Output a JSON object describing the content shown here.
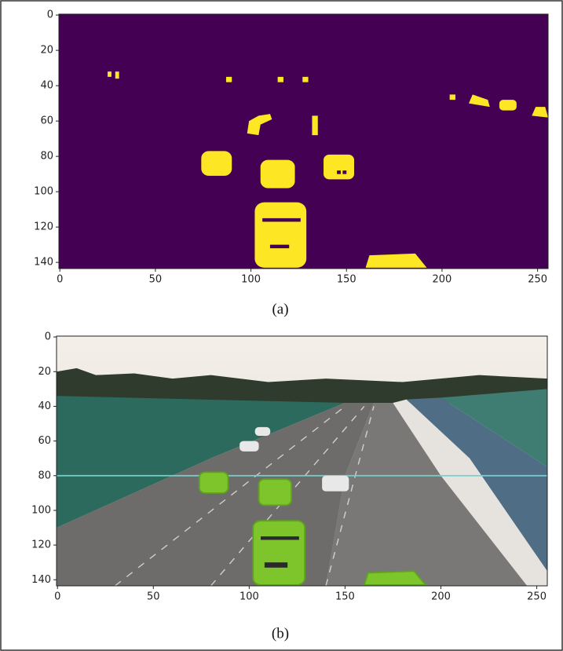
{
  "chart_data": [
    {
      "type": "image",
      "caption": "(a)",
      "xlim": [
        -0.5,
        255.5
      ],
      "ylim": [
        143.5,
        -0.5
      ],
      "xticks": [
        0,
        50,
        100,
        150,
        200,
        250
      ],
      "yticks": [
        0,
        20,
        40,
        60,
        80,
        100,
        120,
        140
      ]
    },
    {
      "type": "image",
      "caption": "(b)",
      "xlim": [
        -0.5,
        255.5
      ],
      "ylim": [
        143.5,
        -0.5
      ],
      "xticks": [
        0,
        50,
        100,
        150,
        200,
        250
      ],
      "yticks": [
        0,
        20,
        40,
        60,
        80,
        100,
        120,
        140
      ]
    }
  ]
}
